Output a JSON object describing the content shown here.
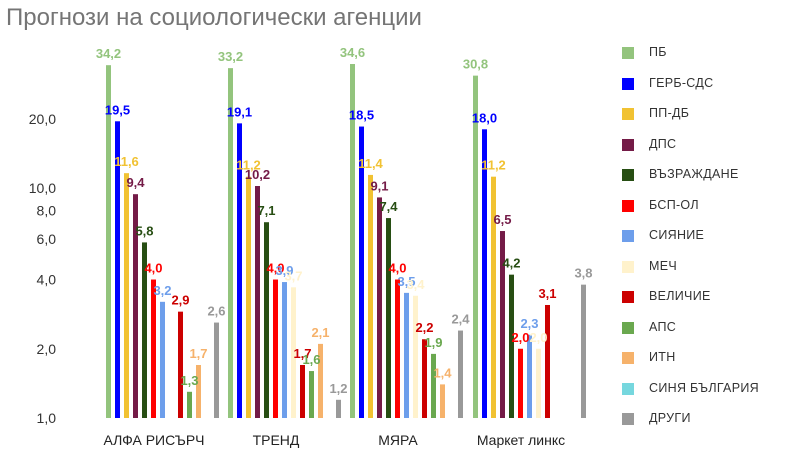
{
  "chart_data": {
    "type": "bar",
    "title": "Прогнози на социологически агенции",
    "xlabel": "",
    "ylabel": "",
    "y_scale": "log",
    "ylim": [
      1,
      40
    ],
    "yticks": [
      1,
      2,
      4,
      6,
      8,
      10,
      20
    ],
    "ytick_labels": [
      "1,0",
      "2,0",
      "4,0",
      "6,0",
      "8,0",
      "10,0",
      "20,0"
    ],
    "grid": false,
    "legend_position": "right",
    "categories": [
      "АЛФА РИСЪРЧ",
      "ТРЕНД",
      "МЯРА",
      "Маркет линкс"
    ],
    "series": [
      {
        "name": "ПБ",
        "color": "#93c47d",
        "values": [
          34.2,
          33.2,
          34.6,
          30.8
        ],
        "labels": [
          "34,2",
          "33,2",
          "34,6",
          "30,8"
        ]
      },
      {
        "name": "ГЕРБ-СДС",
        "color": "#0000ff",
        "values": [
          19.5,
          19.1,
          18.5,
          18.0
        ],
        "labels": [
          "19,5",
          "19,1",
          "18,5",
          "18,0"
        ]
      },
      {
        "name": "ПП-ДБ",
        "color": "#f1c232",
        "values": [
          11.6,
          11.2,
          11.4,
          11.2
        ],
        "labels": [
          "11,6",
          "11,2",
          "11,4",
          "11,2"
        ]
      },
      {
        "name": "ДПС",
        "color": "#741b47",
        "values": [
          9.4,
          10.2,
          9.1,
          6.5
        ],
        "labels": [
          "9,4",
          "10,2",
          "9,1",
          "6,5"
        ]
      },
      {
        "name": "ВЪЗРАЖДАНЕ",
        "color": "#274e13",
        "values": [
          5.8,
          7.1,
          7.4,
          4.2
        ],
        "labels": [
          "5,8",
          "7,1",
          "7,4",
          "4,2"
        ]
      },
      {
        "name": "БСП-ОЛ",
        "color": "#ff0000",
        "values": [
          4.0,
          4.0,
          4.0,
          2.0
        ],
        "labels": [
          "4,0",
          "4,0",
          "4,0",
          "2,0"
        ]
      },
      {
        "name": "СИЯНИЕ",
        "color": "#6d9eeb",
        "values": [
          3.2,
          3.9,
          3.5,
          2.3
        ],
        "labels": [
          "3,2",
          "3,9",
          "3,5",
          "2,3"
        ]
      },
      {
        "name": "МЕЧ",
        "color": "#fff2cc",
        "values": [
          null,
          3.7,
          3.4,
          2.0
        ],
        "labels": [
          null,
          "3,7",
          "3,4",
          "2,0"
        ]
      },
      {
        "name": "ВЕЛИЧИЕ",
        "color": "#cc0000",
        "values": [
          2.9,
          1.7,
          2.2,
          3.1
        ],
        "labels": [
          "2,9",
          "1,7",
          "2,2",
          "3,1"
        ]
      },
      {
        "name": "АПС",
        "color": "#6aa84f",
        "values": [
          1.3,
          1.6,
          1.9,
          null
        ],
        "labels": [
          "1,3",
          "1,6",
          "1,9",
          null
        ]
      },
      {
        "name": "ИТН",
        "color": "#f6b26b",
        "values": [
          1.7,
          2.1,
          1.4,
          null
        ],
        "labels": [
          "1,7",
          "2,1",
          "1,4",
          null
        ]
      },
      {
        "name": "СИНЯ БЪЛГАРИЯ",
        "color": "#76d7de",
        "values": [
          null,
          null,
          null,
          null
        ],
        "labels": [
          null,
          null,
          null,
          null
        ]
      },
      {
        "name": "ДРУГИ",
        "color": "#999999",
        "values": [
          2.6,
          1.2,
          2.4,
          3.8
        ],
        "labels": [
          "2,6",
          "1,2",
          "2,4",
          "3,8"
        ]
      }
    ]
  }
}
